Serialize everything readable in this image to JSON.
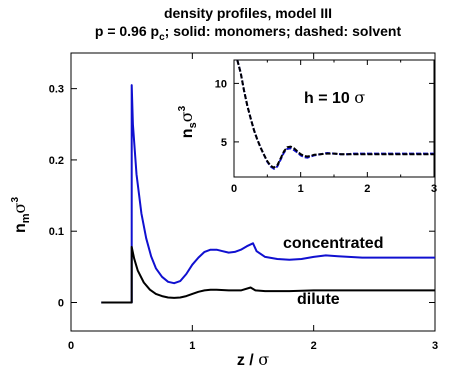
{
  "title_line1": "density profiles, model III",
  "title_line2_a": "p = 0.96 p",
  "title_line2_sub": "c",
  "title_line2_b": "; solid: monomers; dashed: solvent",
  "colors": {
    "concentrated": "#1010d0",
    "dilute": "#000000",
    "axis": "#000000"
  },
  "chart_data": [
    {
      "type": "line",
      "xlabel_main": "z / ",
      "xlabel_symbol": "σ",
      "ylabel_base": "n",
      "ylabel_sub": "m",
      "ylabel_sigma": "σ",
      "ylabel_sup": "3",
      "xlim": [
        0,
        3
      ],
      "ylim": [
        -0.04,
        0.35
      ],
      "xticks": [
        "0",
        "1",
        "2",
        "3"
      ],
      "yticks": [
        "0",
        "0.1",
        "0.2",
        "0.3"
      ],
      "xtick_values": [
        0,
        1,
        2,
        3
      ],
      "ytick_values": [
        0,
        0.1,
        0.2,
        0.3
      ],
      "series": [
        {
          "name": "concentrated",
          "style": "solid",
          "x": [
            0.25,
            0.5,
            0.5,
            0.51,
            0.54,
            0.58,
            0.62,
            0.66,
            0.7,
            0.75,
            0.8,
            0.85,
            0.9,
            0.95,
            1.0,
            1.05,
            1.1,
            1.15,
            1.2,
            1.25,
            1.3,
            1.35,
            1.4,
            1.45,
            1.5,
            1.53,
            1.6,
            1.7,
            1.8,
            1.9,
            2.0,
            2.1,
            2.2,
            2.4,
            2.6,
            2.8,
            3.0
          ],
          "y": [
            0,
            0,
            0.305,
            0.25,
            0.18,
            0.125,
            0.09,
            0.065,
            0.048,
            0.036,
            0.029,
            0.027,
            0.03,
            0.04,
            0.053,
            0.063,
            0.071,
            0.074,
            0.074,
            0.072,
            0.07,
            0.071,
            0.074,
            0.079,
            0.083,
            0.072,
            0.064,
            0.061,
            0.06,
            0.061,
            0.064,
            0.066,
            0.065,
            0.063,
            0.063,
            0.063,
            0.063
          ]
        },
        {
          "name": "dilute",
          "style": "solid",
          "x": [
            0.25,
            0.5,
            0.5,
            0.52,
            0.55,
            0.6,
            0.65,
            0.7,
            0.75,
            0.8,
            0.85,
            0.9,
            0.95,
            1.0,
            1.05,
            1.1,
            1.15,
            1.2,
            1.3,
            1.4,
            1.48,
            1.52,
            1.6,
            1.8,
            2.0,
            2.2,
            2.5,
            3.0
          ],
          "y": [
            0,
            0,
            0.078,
            0.062,
            0.045,
            0.028,
            0.018,
            0.012,
            0.009,
            0.007,
            0.0065,
            0.007,
            0.009,
            0.012,
            0.015,
            0.017,
            0.018,
            0.018,
            0.017,
            0.017,
            0.021,
            0.017,
            0.016,
            0.016,
            0.017,
            0.017,
            0.017,
            0.017
          ]
        }
      ],
      "annotations": [
        "concentrated",
        "dilute"
      ]
    },
    {
      "type": "line",
      "ylabel_base": "n",
      "ylabel_sub": "s",
      "ylabel_sigma": "σ",
      "ylabel_sup": "3",
      "xlim": [
        0,
        3
      ],
      "ylim": [
        2,
        12
      ],
      "xticks": [
        "0",
        "1",
        "2",
        "3"
      ],
      "yticks": [
        "5",
        "10"
      ],
      "xtick_values": [
        0,
        1,
        2,
        3
      ],
      "ytick_values": [
        5,
        10
      ],
      "minor_xticks": [
        0.5,
        1.5,
        2.5
      ],
      "annotation_main": "h = 10 ",
      "annotation_symbol": "σ",
      "series": [
        {
          "name": "concentrated",
          "style": "dashed",
          "x": [
            0.05,
            0.1,
            0.15,
            0.2,
            0.25,
            0.3,
            0.35,
            0.4,
            0.45,
            0.5,
            0.55,
            0.6,
            0.65,
            0.7,
            0.75,
            0.8,
            0.85,
            0.9,
            0.95,
            1.0,
            1.05,
            1.1,
            1.15,
            1.2,
            1.3,
            1.4,
            1.5,
            1.6,
            1.7,
            1.8,
            2.0,
            2.2,
            2.5,
            3.0
          ],
          "y": [
            12.0,
            10.9,
            9.4,
            8.1,
            7.0,
            6.0,
            5.2,
            4.5,
            3.9,
            3.3,
            2.9,
            2.7,
            2.9,
            3.5,
            4.1,
            4.4,
            4.45,
            4.3,
            4.1,
            3.85,
            3.7,
            3.65,
            3.75,
            3.85,
            3.95,
            4.05,
            4.0,
            3.95,
            3.95,
            4.0,
            4.0,
            4.0,
            4.0,
            4.0
          ]
        },
        {
          "name": "dilute",
          "style": "dashed",
          "x": [
            0.05,
            0.1,
            0.15,
            0.2,
            0.25,
            0.3,
            0.35,
            0.4,
            0.45,
            0.5,
            0.55,
            0.6,
            0.65,
            0.7,
            0.75,
            0.8,
            0.85,
            0.9,
            0.95,
            1.0,
            1.05,
            1.1,
            1.15,
            1.2,
            1.3,
            1.4,
            1.5,
            1.6,
            1.7,
            1.8,
            2.0,
            2.2,
            2.5,
            3.0
          ],
          "y": [
            12.0,
            10.9,
            9.4,
            8.1,
            7.0,
            6.0,
            5.2,
            4.5,
            3.9,
            3.35,
            2.95,
            2.8,
            3.0,
            3.6,
            4.2,
            4.55,
            4.6,
            4.45,
            4.2,
            3.95,
            3.8,
            3.75,
            3.8,
            3.9,
            3.95,
            4.0,
            4.0,
            3.95,
            3.95,
            3.95,
            3.95,
            3.95,
            3.95,
            3.95
          ]
        }
      ]
    }
  ]
}
